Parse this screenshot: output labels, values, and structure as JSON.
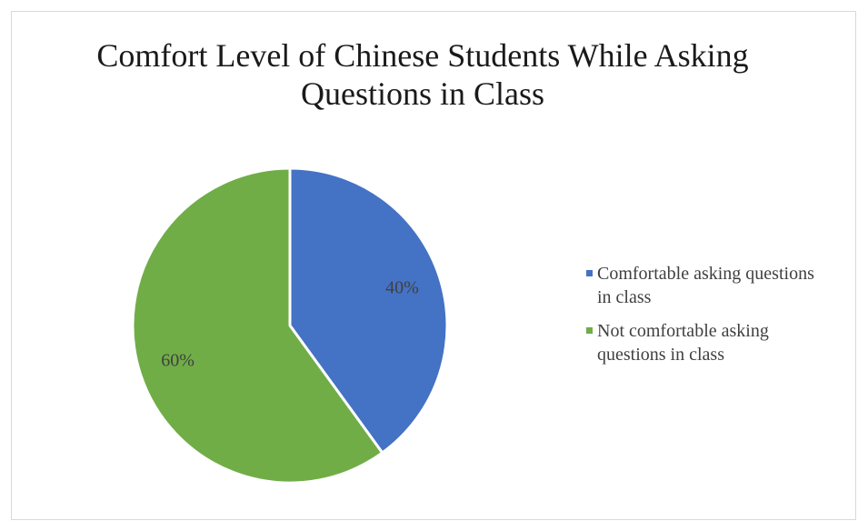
{
  "chart_data": {
    "type": "pie",
    "title_lines": [
      "Comfort Level of Chinese Students While Asking",
      "Questions in Class"
    ],
    "slices": [
      {
        "label": "Comfortable asking questions in class",
        "value": 40,
        "display": "40%",
        "color": "#4472c4"
      },
      {
        "label": "Not comfortable asking questions in class",
        "value": 60,
        "display": "60%",
        "color": "#70ad47"
      }
    ],
    "legend": {
      "position": "right",
      "entries": [
        {
          "lines": [
            "Comfortable asking questions",
            "in class"
          ],
          "color": "#4472c4"
        },
        {
          "lines": [
            "Not comfortable asking",
            "questions in class"
          ],
          "color": "#70ad47"
        }
      ]
    }
  }
}
